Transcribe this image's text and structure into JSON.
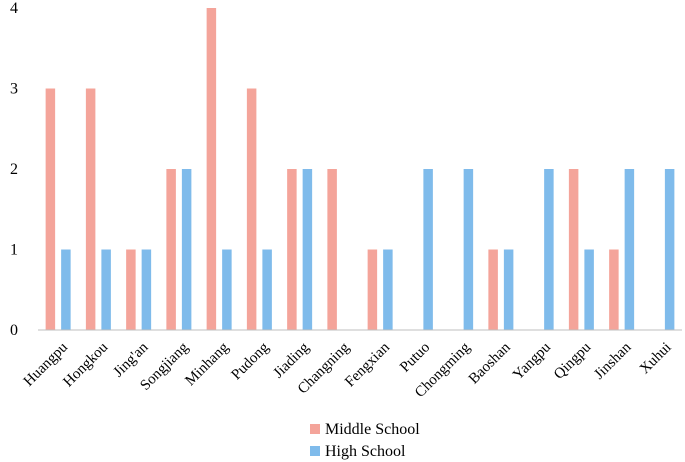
{
  "chart_data": {
    "type": "bar",
    "title": "",
    "xlabel": "",
    "ylabel": "",
    "ylim": [
      0,
      4
    ],
    "yticks": [
      0,
      1,
      2,
      3,
      4
    ],
    "grid": false,
    "legend_position": "bottom",
    "categories": [
      "Huangpu",
      "Hongkou",
      "Jing'an",
      "Songjiang",
      "Minhang",
      "Pudong",
      "Jiading",
      "Changning",
      "Fengxian",
      "Putuo",
      "Chongming",
      "Baoshan",
      "Yangpu",
      "Qingpu",
      "Jinshan",
      "Xuhui"
    ],
    "series": [
      {
        "name": "Middle School",
        "color": "#f4a49a",
        "values": [
          3,
          3,
          1,
          2,
          4,
          3,
          2,
          2,
          1,
          0,
          0,
          1,
          0,
          2,
          1,
          0
        ]
      },
      {
        "name": "High School",
        "color": "#7fbbeb",
        "values": [
          1,
          1,
          1,
          2,
          1,
          1,
          2,
          0,
          1,
          2,
          2,
          1,
          2,
          1,
          2,
          2
        ]
      }
    ]
  }
}
